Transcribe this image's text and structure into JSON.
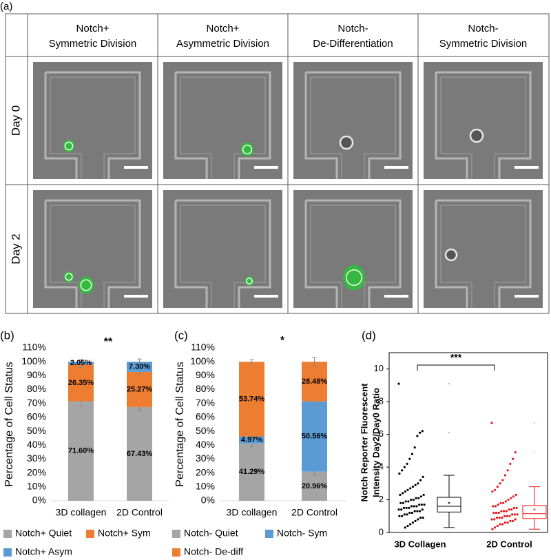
{
  "figure_a": {
    "label": "(a)",
    "columns": [
      [
        "Notch+",
        "Symmetric Division"
      ],
      [
        "Notch+",
        "Asymmetric Division"
      ],
      [
        "Notch-",
        "De-Differentiation"
      ],
      [
        "Notch-",
        "Symmetric Division"
      ]
    ],
    "rows": [
      "Day 0",
      "Day 2"
    ]
  },
  "chart_data": [
    {
      "type": "stacked_bar",
      "panel": "(b)",
      "annotation": "**",
      "ylabel": "Percentage of Cell Status",
      "categories": [
        "3D collagen",
        "2D Control"
      ],
      "series": [
        {
          "name": "Notch+ Quiet",
          "color": "#a5a5a5",
          "values": [
            71.6,
            67.43
          ],
          "value_labels": [
            "71.60%",
            "67.43%"
          ],
          "errors": [
            3.5,
            2.5
          ]
        },
        {
          "name": "Notch+ Sym",
          "color": "#ed7d31",
          "values": [
            26.35,
            25.27
          ],
          "value_labels": [
            "26.35%",
            "25.27%"
          ],
          "errors": [
            2,
            1.5
          ]
        },
        {
          "name": "Notch+ Asym",
          "color": "#5b9bd5",
          "values": [
            2.05,
            7.3
          ],
          "value_labels": [
            "2.05%",
            "7.30%"
          ],
          "errors": [
            1.5,
            2
          ]
        }
      ],
      "ylim": [
        0,
        110
      ],
      "yticks": [
        {
          "value": 0,
          "label": "0%"
        },
        {
          "value": 10,
          "label": "10%"
        },
        {
          "value": 20,
          "label": "20%"
        },
        {
          "value": 30,
          "label": "30%"
        },
        {
          "value": 40,
          "label": "40%"
        },
        {
          "value": 50,
          "label": "50%"
        },
        {
          "value": 60,
          "label": "60%"
        },
        {
          "value": 70,
          "label": "70%"
        },
        {
          "value": 80,
          "label": "80%"
        },
        {
          "value": 90,
          "label": "90%"
        },
        {
          "value": 100,
          "label": "100%"
        },
        {
          "value": 110,
          "label": "110%"
        }
      ],
      "grid": false,
      "legend": "bottom"
    },
    {
      "type": "stacked_bar",
      "panel": "(c)",
      "annotation": "*",
      "ylabel": "Percentage of Cell Status",
      "categories": [
        "3D collagen",
        "2D Control"
      ],
      "series": [
        {
          "name": "Notch- Quiet",
          "color": "#a5a5a5",
          "values": [
            41.29,
            20.96
          ],
          "value_labels": [
            "41.29%",
            "20.96%"
          ],
          "errors": [
            2.5,
            2.5
          ]
        },
        {
          "name": "Notch- Sym",
          "color": "#5b9bd5",
          "values": [
            4.97,
            50.56
          ],
          "value_labels": [
            "4.97%",
            "50.56%"
          ],
          "errors": [
            1.5,
            4
          ]
        },
        {
          "name": "Notch- De-diff",
          "color": "#ed7d31",
          "values": [
            53.74,
            28.48
          ],
          "value_labels": [
            "53.74%",
            "28.48%"
          ],
          "errors": [
            1.5,
            3
          ]
        }
      ],
      "ylim": [
        0,
        110
      ],
      "yticks": [
        {
          "value": 0,
          "label": "0%"
        },
        {
          "value": 10,
          "label": "10%"
        },
        {
          "value": 20,
          "label": "20%"
        },
        {
          "value": 30,
          "label": "30%"
        },
        {
          "value": 40,
          "label": "40%"
        },
        {
          "value": 50,
          "label": "50%"
        },
        {
          "value": 60,
          "label": "60%"
        },
        {
          "value": 70,
          "label": "70%"
        },
        {
          "value": 80,
          "label": "80%"
        },
        {
          "value": 90,
          "label": "90%"
        },
        {
          "value": 100,
          "label": "100%"
        },
        {
          "value": 110,
          "label": "110%"
        }
      ],
      "grid": false,
      "legend": "bottom"
    },
    {
      "type": "box_scatter",
      "panel": "(d)",
      "annotation": "***",
      "ylabel": [
        "Notch Reporter Fluorescent",
        "Intensity Day2/Day0 Ratio"
      ],
      "categories": [
        "3D Collagen",
        "2D Control"
      ],
      "groups": [
        {
          "color": "#000000",
          "points": [
            9.1,
            6.2,
            6.1,
            5.9,
            5.2,
            4.8,
            4.5,
            4.2,
            4.0,
            3.8,
            3.6,
            3.4,
            3.2,
            3.0,
            2.9,
            2.8,
            2.7,
            2.6,
            2.5,
            2.4,
            2.3,
            2.3,
            2.2,
            2.1,
            2.1,
            2.0,
            2.0,
            1.9,
            1.9,
            1.8,
            1.8,
            1.7,
            1.7,
            1.7,
            1.6,
            1.6,
            1.6,
            1.5,
            1.5,
            1.5,
            1.4,
            1.4,
            1.4,
            1.3,
            1.3,
            1.3,
            1.2,
            1.2,
            1.1,
            1.1,
            1.0,
            1.0,
            0.9,
            0.9,
            0.8,
            0.7,
            0.6,
            0.5,
            0.4,
            0.3
          ],
          "box": {
            "min": 0.3,
            "q1": 1.25,
            "median": 1.6,
            "q3": 2.15,
            "max": 3.5,
            "mean": 1.8
          },
          "outliers": [
            6.1,
            9.1
          ]
        },
        {
          "color": "#e8141b",
          "points": [
            6.7,
            4.9,
            4.5,
            4.2,
            3.8,
            3.5,
            3.2,
            3.0,
            2.8,
            2.6,
            2.5,
            2.3,
            2.2,
            2.1,
            2.0,
            1.9,
            1.8,
            1.8,
            1.7,
            1.6,
            1.6,
            1.5,
            1.5,
            1.4,
            1.4,
            1.3,
            1.3,
            1.3,
            1.2,
            1.2,
            1.2,
            1.1,
            1.1,
            1.1,
            1.0,
            1.0,
            1.0,
            0.9,
            0.9,
            0.9,
            0.8,
            0.8,
            0.8,
            0.7,
            0.7,
            0.6,
            0.6,
            0.5,
            0.5,
            0.4,
            0.3,
            0.2
          ],
          "box": {
            "min": 0.2,
            "q1": 0.85,
            "median": 1.15,
            "q3": 1.65,
            "max": 2.8,
            "mean": 1.4
          },
          "outliers": [
            4.9,
            6.7
          ]
        }
      ],
      "ylim": [
        0,
        11
      ],
      "yticks": [
        0,
        2,
        4,
        6,
        8,
        10
      ],
      "grid": false
    }
  ]
}
